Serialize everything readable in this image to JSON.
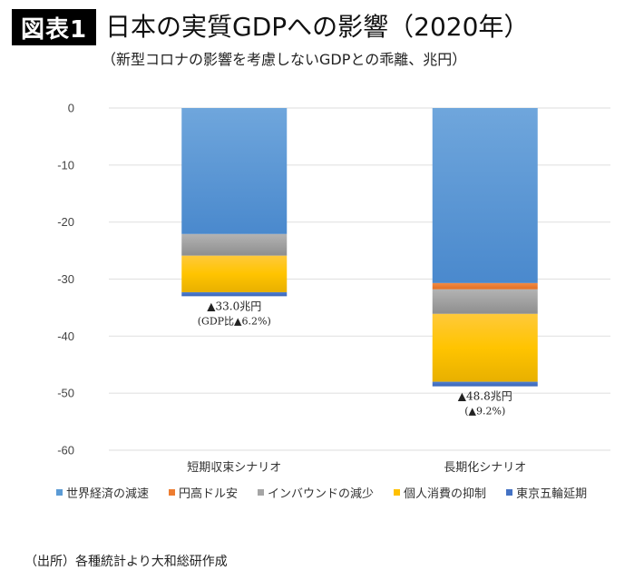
{
  "header": {
    "badge": "図表1",
    "title": "日本の実質GDPへの影響（2020年）",
    "subtitle": "（新型コロナの影響を考慮しないGDPとの乖離、兆円）"
  },
  "source": "（出所）各種統計より大和総研作成",
  "chart_data": {
    "type": "bar",
    "stacked": true,
    "title": "日本の実質GDPへの影響（2020年）",
    "subtitle": "（新型コロナの影響を考慮しないGDPとの乖離、兆円）",
    "xlabel": "",
    "ylabel": "",
    "ylim": [
      -60,
      0
    ],
    "yticks": [
      0,
      -10,
      -20,
      -30,
      -40,
      -50,
      -60
    ],
    "ytick_labels": [
      "0",
      "-10",
      "-20",
      "-30",
      "-40",
      "-50",
      "-60"
    ],
    "grid": true,
    "legend_position": "bottom",
    "categories": [
      "短期収束シナリオ",
      "長期化シナリオ"
    ],
    "series": [
      {
        "name": "世界経済の減速",
        "color": "#5b9bd5",
        "values": [
          -22.1,
          -30.7
        ]
      },
      {
        "name": "円高ドル安",
        "color": "#ed7d31",
        "values": [
          0.0,
          -1.1
        ]
      },
      {
        "name": "インバウンドの減少",
        "color": "#a5a5a5",
        "values": [
          -3.8,
          -4.3
        ]
      },
      {
        "name": "個人消費の抑制",
        "color": "#ffc000",
        "values": [
          -6.4,
          -11.9
        ]
      },
      {
        "name": "東京五輪延期",
        "color": "#4472c4",
        "values": [
          -0.7,
          -0.8
        ]
      }
    ],
    "annotations": [
      {
        "category": "短期収束シナリオ",
        "line1": "▲33.0兆円",
        "line2": "(GDP比▲6.2%)"
      },
      {
        "category": "長期化シナリオ",
        "line1": "▲48.8兆円",
        "line2": "(▲9.2%)"
      }
    ]
  }
}
